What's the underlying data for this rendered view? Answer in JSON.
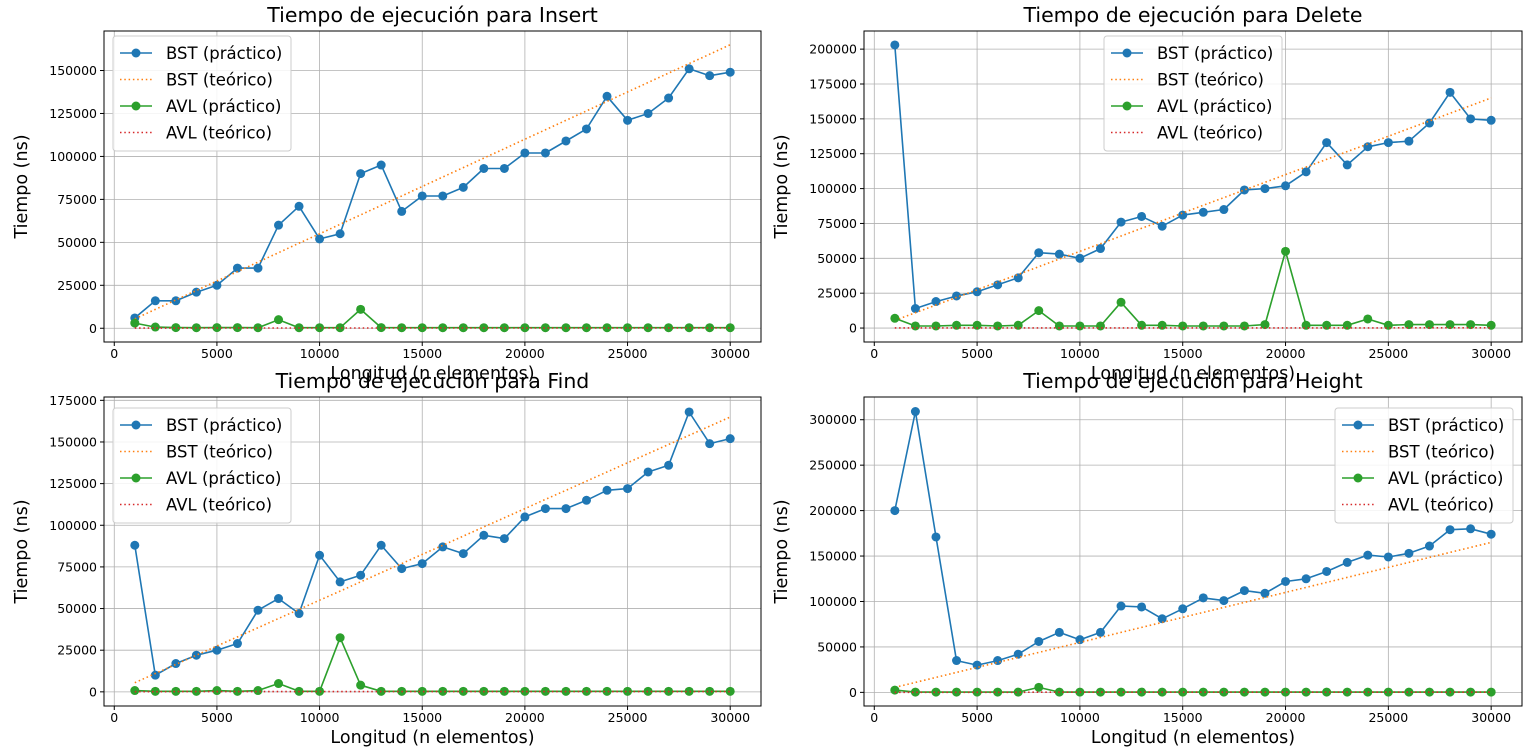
{
  "figure": {
    "background": "#ffffff"
  },
  "styles": {
    "bst_color": "#1f77b4",
    "bst_theory_color": "#ff7f0e",
    "avl_color": "#2ca02c",
    "avl_theory_color": "#d62728",
    "grid_color": "#b0b0b0"
  },
  "chart_data": [
    {
      "type": "line",
      "title": "Tiempo de ejecución para Insert",
      "xlabel": "Longitud (n elementos)",
      "ylabel": "Tiempo (ns)",
      "xlim": [
        -500,
        31500
      ],
      "ylim": [
        -8000,
        173000
      ],
      "xticks": [
        0,
        5000,
        10000,
        15000,
        20000,
        25000,
        30000
      ],
      "yticks": [
        0,
        25000,
        50000,
        75000,
        100000,
        125000,
        150000
      ],
      "grid": true,
      "legend_position": "upper-left",
      "x": [
        1000,
        2000,
        3000,
        4000,
        5000,
        6000,
        7000,
        8000,
        9000,
        10000,
        11000,
        12000,
        13000,
        14000,
        15000,
        16000,
        17000,
        18000,
        19000,
        20000,
        21000,
        22000,
        23000,
        24000,
        25000,
        26000,
        27000,
        28000,
        29000,
        30000
      ],
      "series": [
        {
          "name": "BST (práctico)",
          "style": "solid-marker",
          "color": "#1f77b4",
          "values": [
            6000,
            16000,
            16000,
            21000,
            25000,
            35000,
            35000,
            60000,
            71000,
            52000,
            55000,
            90000,
            95000,
            68000,
            77000,
            77000,
            82000,
            93000,
            93000,
            102000,
            102000,
            109000,
            116000,
            135000,
            121000,
            125000,
            134000,
            151000,
            147000,
            149000
          ]
        },
        {
          "name": "BST (teórico)",
          "style": "dotted",
          "color": "#ff7f0e",
          "values": [
            5500,
            11000,
            16500,
            22000,
            27500,
            33000,
            38500,
            44000,
            49500,
            55000,
            60500,
            66000,
            71500,
            77000,
            82500,
            88000,
            93500,
            99000,
            104500,
            110000,
            115500,
            121000,
            126500,
            132000,
            137500,
            143000,
            148500,
            154000,
            159500,
            165000
          ]
        },
        {
          "name": "AVL (práctico)",
          "style": "solid-marker",
          "color": "#2ca02c",
          "values": [
            3000,
            700,
            400,
            300,
            400,
            400,
            300,
            5000,
            300,
            300,
            300,
            11000,
            400,
            300,
            300,
            300,
            300,
            300,
            300,
            300,
            300,
            300,
            300,
            300,
            300,
            300,
            300,
            300,
            300,
            300
          ]
        },
        {
          "name": "AVL (teórico)",
          "style": "dotted",
          "color": "#d62728",
          "values": [
            100,
            110,
            116,
            120,
            123,
            126,
            128,
            130,
            131,
            133,
            134,
            135,
            137,
            138,
            139,
            140,
            140,
            141,
            142,
            143,
            144,
            144,
            145,
            146,
            146,
            147,
            147,
            148,
            148,
            149
          ]
        }
      ]
    },
    {
      "type": "line",
      "title": "Tiempo de ejecución para Delete",
      "xlabel": "Longitud (n elementos)",
      "ylabel": "Tiempo (ns)",
      "xlim": [
        -500,
        31500
      ],
      "ylim": [
        -10000,
        213000
      ],
      "xticks": [
        0,
        5000,
        10000,
        15000,
        20000,
        25000,
        30000
      ],
      "yticks": [
        0,
        25000,
        50000,
        75000,
        100000,
        125000,
        150000,
        175000,
        200000
      ],
      "grid": true,
      "legend_position": "upper-center",
      "x": [
        1000,
        2000,
        3000,
        4000,
        5000,
        6000,
        7000,
        8000,
        9000,
        10000,
        11000,
        12000,
        13000,
        14000,
        15000,
        16000,
        17000,
        18000,
        19000,
        20000,
        21000,
        22000,
        23000,
        24000,
        25000,
        26000,
        27000,
        28000,
        29000,
        30000
      ],
      "series": [
        {
          "name": "BST (práctico)",
          "style": "solid-marker",
          "color": "#1f77b4",
          "values": [
            203000,
            14000,
            19000,
            23000,
            26000,
            31000,
            36000,
            54000,
            53000,
            50000,
            57000,
            76000,
            80000,
            73000,
            81000,
            83000,
            85000,
            99000,
            100000,
            102000,
            112000,
            133000,
            117000,
            130000,
            133000,
            134000,
            147000,
            169000,
            150000,
            149000
          ]
        },
        {
          "name": "BST (teórico)",
          "style": "dotted",
          "color": "#ff7f0e",
          "values": [
            5500,
            11000,
            16500,
            22000,
            27500,
            33000,
            38500,
            44000,
            49500,
            55000,
            60500,
            66000,
            71500,
            77000,
            82500,
            88000,
            93500,
            99000,
            104500,
            110000,
            115500,
            121000,
            126500,
            132000,
            137500,
            143000,
            148500,
            154000,
            159500,
            165000
          ]
        },
        {
          "name": "AVL (práctico)",
          "style": "solid-marker",
          "color": "#2ca02c",
          "values": [
            7000,
            1500,
            1500,
            2000,
            2000,
            1500,
            2000,
            12500,
            1500,
            1500,
            1500,
            18500,
            2000,
            2000,
            1500,
            1500,
            1500,
            1500,
            2500,
            55000,
            2000,
            2000,
            2000,
            6500,
            2000,
            2500,
            2500,
            2500,
            2500,
            2000
          ]
        },
        {
          "name": "AVL (teórico)",
          "style": "dotted",
          "color": "#d62728",
          "values": [
            100,
            110,
            116,
            120,
            123,
            126,
            128,
            130,
            131,
            133,
            134,
            135,
            137,
            138,
            139,
            140,
            140,
            141,
            142,
            143,
            144,
            144,
            145,
            146,
            146,
            147,
            147,
            148,
            148,
            149
          ]
        }
      ]
    },
    {
      "type": "line",
      "title": "Tiempo de ejecución para Find",
      "xlabel": "Longitud (n elementos)",
      "ylabel": "Tiempo (ns)",
      "xlim": [
        -500,
        31500
      ],
      "ylim": [
        -8500,
        177000
      ],
      "xticks": [
        0,
        5000,
        10000,
        15000,
        20000,
        25000,
        30000
      ],
      "yticks": [
        0,
        25000,
        50000,
        75000,
        100000,
        125000,
        150000,
        175000
      ],
      "grid": true,
      "legend_position": "upper-left",
      "x": [
        1000,
        2000,
        3000,
        4000,
        5000,
        6000,
        7000,
        8000,
        9000,
        10000,
        11000,
        12000,
        13000,
        14000,
        15000,
        16000,
        17000,
        18000,
        19000,
        20000,
        21000,
        22000,
        23000,
        24000,
        25000,
        26000,
        27000,
        28000,
        29000,
        30000
      ],
      "series": [
        {
          "name": "BST (práctico)",
          "style": "solid-marker",
          "color": "#1f77b4",
          "values": [
            88000,
            10000,
            17000,
            22000,
            25000,
            29000,
            49000,
            56000,
            47000,
            82000,
            66000,
            70000,
            88000,
            74000,
            77000,
            87000,
            83000,
            94000,
            92000,
            105000,
            110000,
            110000,
            115000,
            121000,
            122000,
            132000,
            136000,
            168000,
            149000,
            152000
          ]
        },
        {
          "name": "BST (teórico)",
          "style": "dotted",
          "color": "#ff7f0e",
          "values": [
            5500,
            11000,
            16500,
            22000,
            27500,
            33000,
            38500,
            44000,
            49500,
            55000,
            60500,
            66000,
            71500,
            77000,
            82500,
            88000,
            93500,
            99000,
            104500,
            110000,
            115500,
            121000,
            126500,
            132000,
            137500,
            143000,
            148500,
            154000,
            159500,
            165000
          ]
        },
        {
          "name": "AVL (práctico)",
          "style": "solid-marker",
          "color": "#2ca02c",
          "values": [
            800,
            300,
            300,
            300,
            800,
            300,
            800,
            5000,
            300,
            300,
            32500,
            4000,
            300,
            300,
            300,
            300,
            300,
            300,
            300,
            300,
            300,
            300,
            300,
            300,
            300,
            300,
            300,
            300,
            300,
            300
          ]
        },
        {
          "name": "AVL (teórico)",
          "style": "dotted",
          "color": "#d62728",
          "values": [
            100,
            110,
            116,
            120,
            123,
            126,
            128,
            130,
            131,
            133,
            134,
            135,
            137,
            138,
            139,
            140,
            140,
            141,
            142,
            143,
            144,
            144,
            145,
            146,
            146,
            147,
            147,
            148,
            148,
            149
          ]
        }
      ]
    },
    {
      "type": "line",
      "title": "Tiempo de ejecución para Height",
      "xlabel": "Longitud (n elementos)",
      "ylabel": "Tiempo (ns)",
      "xlim": [
        -500,
        31500
      ],
      "ylim": [
        -15000,
        325000
      ],
      "xticks": [
        0,
        5000,
        10000,
        15000,
        20000,
        25000,
        30000
      ],
      "yticks": [
        0,
        50000,
        100000,
        150000,
        200000,
        250000,
        300000
      ],
      "grid": true,
      "legend_position": "upper-right",
      "x": [
        1000,
        2000,
        3000,
        4000,
        5000,
        6000,
        7000,
        8000,
        9000,
        10000,
        11000,
        12000,
        13000,
        14000,
        15000,
        16000,
        17000,
        18000,
        19000,
        20000,
        21000,
        22000,
        23000,
        24000,
        25000,
        26000,
        27000,
        28000,
        29000,
        30000
      ],
      "series": [
        {
          "name": "BST (práctico)",
          "style": "solid-marker",
          "color": "#1f77b4",
          "values": [
            200000,
            309000,
            171000,
            35000,
            30000,
            35000,
            42000,
            56000,
            66000,
            58000,
            66000,
            95000,
            94000,
            81000,
            92000,
            104000,
            101000,
            112000,
            109000,
            122000,
            125000,
            133000,
            143000,
            151000,
            149000,
            153000,
            161000,
            179000,
            180000,
            174000
          ]
        },
        {
          "name": "BST (teórico)",
          "style": "dotted",
          "color": "#ff7f0e",
          "values": [
            5500,
            11000,
            16500,
            22000,
            27500,
            33000,
            38500,
            44000,
            49500,
            55000,
            60500,
            66000,
            71500,
            77000,
            82500,
            88000,
            93500,
            99000,
            104500,
            110000,
            115500,
            121000,
            126500,
            132000,
            137500,
            143000,
            148500,
            154000,
            159500,
            165000
          ]
        },
        {
          "name": "AVL (práctico)",
          "style": "solid-marker",
          "color": "#2ca02c",
          "values": [
            2500,
            300,
            300,
            300,
            300,
            300,
            300,
            5500,
            300,
            300,
            300,
            300,
            300,
            300,
            300,
            300,
            300,
            300,
            300,
            300,
            300,
            300,
            300,
            300,
            300,
            300,
            300,
            300,
            300,
            300
          ]
        },
        {
          "name": "AVL (teórico)",
          "style": "dotted",
          "color": "#d62728",
          "values": [
            100,
            110,
            116,
            120,
            123,
            126,
            128,
            130,
            131,
            133,
            134,
            135,
            137,
            138,
            139,
            140,
            140,
            141,
            142,
            143,
            144,
            144,
            145,
            146,
            146,
            147,
            147,
            148,
            148,
            149
          ]
        }
      ]
    }
  ]
}
